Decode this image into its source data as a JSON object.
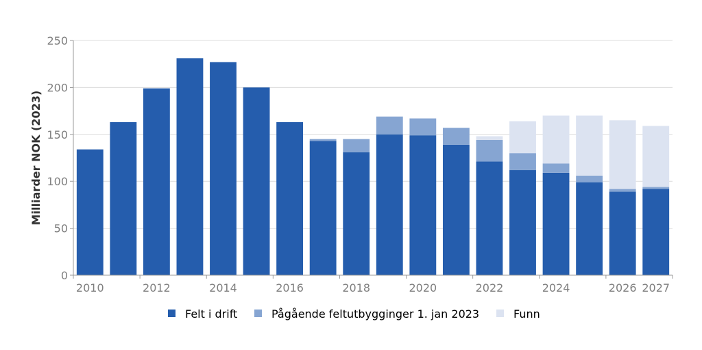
{
  "chart_data": {
    "type": "bar",
    "stacked": true,
    "ylabel": "Milliarder NOK (2023)",
    "ylim": [
      0,
      250
    ],
    "yticks": [
      0,
      50,
      100,
      150,
      200,
      250
    ],
    "grid": true,
    "legend_position": "bottom-center",
    "categories": [
      "2010",
      "2011",
      "2012",
      "2013",
      "2014",
      "2015",
      "2016",
      "2017",
      "2018",
      "2019",
      "2020",
      "2021",
      "2022",
      "2023",
      "2024",
      "2025",
      "2026",
      "2027"
    ],
    "x_tick_labels": [
      "2010",
      "",
      "2012",
      "",
      "2014",
      "",
      "2016",
      "",
      "2018",
      "",
      "2020",
      "",
      "2022",
      "",
      "2024",
      "",
      "2026",
      "2027"
    ],
    "series": [
      {
        "name": "Felt i drift",
        "color": "#255DAD",
        "values": [
          134,
          163,
          199,
          231,
          227,
          200,
          163,
          143,
          131,
          150,
          149,
          139,
          121,
          112,
          109,
          99,
          89,
          92
        ]
      },
      {
        "name": "Pågående feltutbygginger 1. jan 2023",
        "color": "#86A5D2",
        "values": [
          0,
          0,
          0,
          0,
          0,
          0,
          0,
          2,
          14,
          19,
          18,
          18,
          23,
          18,
          10,
          7,
          3,
          2
        ]
      },
      {
        "name": "Funn",
        "color": "#DCE3F1",
        "values": [
          0,
          0,
          0,
          0,
          0,
          0,
          0,
          0,
          0,
          0,
          0,
          0,
          4,
          34,
          51,
          64,
          73,
          65
        ]
      }
    ]
  }
}
